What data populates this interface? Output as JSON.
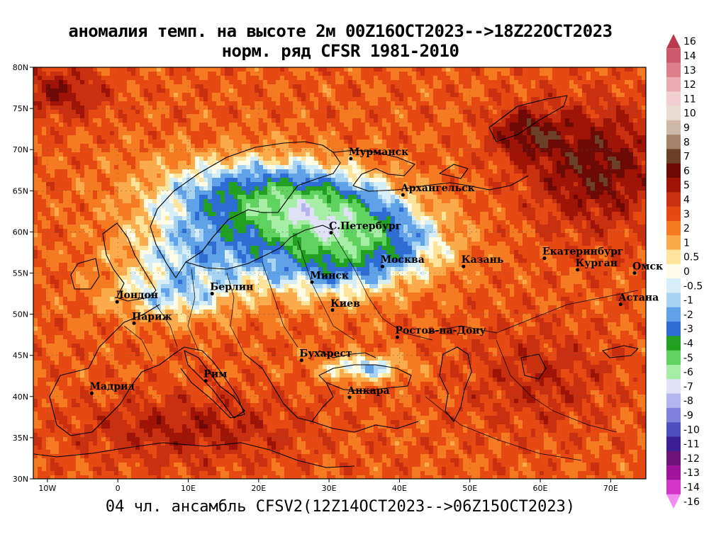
{
  "header": {
    "title_line1": "аномалия темп. на высоте 2м 00Z16OCT2023-->18Z22OCT2023",
    "title_line2": "норм. ряд CFSR 1981-2010"
  },
  "footer": {
    "text": "04 чл. ансамбль CFSV2(12Z14OCT2023-->06Z15OCT2023)"
  },
  "map": {
    "lon_range": [
      -12,
      75
    ],
    "lat_range": [
      30,
      80
    ],
    "x_ticks": [
      {
        "lon": -10,
        "label": "10W"
      },
      {
        "lon": 0,
        "label": "0"
      },
      {
        "lon": 10,
        "label": "10E"
      },
      {
        "lon": 20,
        "label": "20E"
      },
      {
        "lon": 30,
        "label": "30E"
      },
      {
        "lon": 40,
        "label": "40E"
      },
      {
        "lon": 50,
        "label": "50E"
      },
      {
        "lon": 60,
        "label": "60E"
      },
      {
        "lon": 70,
        "label": "70E"
      }
    ],
    "y_ticks": [
      {
        "lat": 80,
        "label": "80N"
      },
      {
        "lat": 75,
        "label": "75N"
      },
      {
        "lat": 70,
        "label": "70N"
      },
      {
        "lat": 65,
        "label": "65N"
      },
      {
        "lat": 60,
        "label": "60N"
      },
      {
        "lat": 55,
        "label": "55N"
      },
      {
        "lat": 50,
        "label": "50N"
      },
      {
        "lat": 45,
        "label": "45N"
      },
      {
        "lat": 40,
        "label": "40N"
      },
      {
        "lat": 35,
        "label": "35N"
      },
      {
        "lat": 30,
        "label": "30N"
      }
    ],
    "cities": [
      {
        "name": "Мурманск",
        "lon": 33.1,
        "lat": 68.9
      },
      {
        "name": "Архангельск",
        "lon": 40.5,
        "lat": 64.5
      },
      {
        "name": "С.Петербург",
        "lon": 30.3,
        "lat": 59.9
      },
      {
        "name": "Москва",
        "lon": 37.6,
        "lat": 55.8
      },
      {
        "name": "Казань",
        "lon": 49.1,
        "lat": 55.8
      },
      {
        "name": "Екатеринбург",
        "lon": 60.6,
        "lat": 56.8
      },
      {
        "name": "Курган",
        "lon": 65.3,
        "lat": 55.4
      },
      {
        "name": "Омск",
        "lon": 73.4,
        "lat": 55.0
      },
      {
        "name": "Астана",
        "lon": 71.4,
        "lat": 51.2
      },
      {
        "name": "Минск",
        "lon": 27.6,
        "lat": 53.9
      },
      {
        "name": "Киев",
        "lon": 30.5,
        "lat": 50.5
      },
      {
        "name": "Берлин",
        "lon": 13.4,
        "lat": 52.5
      },
      {
        "name": "Лондон",
        "lon": -0.1,
        "lat": 51.5
      },
      {
        "name": "Париж",
        "lon": 2.3,
        "lat": 48.9
      },
      {
        "name": "Ростов-на-Дону",
        "lon": 39.7,
        "lat": 47.2
      },
      {
        "name": "Бухарест",
        "lon": 26.1,
        "lat": 44.4
      },
      {
        "name": "Рим",
        "lon": 12.5,
        "lat": 41.9
      },
      {
        "name": "Мадрид",
        "lon": -3.7,
        "lat": 40.4
      },
      {
        "name": "Анкара",
        "lon": 32.9,
        "lat": 39.9
      }
    ],
    "anomaly_blobs": [
      {
        "lon": 18,
        "lat": 64,
        "slon": 14,
        "slat": 5,
        "amp": -5.5
      },
      {
        "lon": 12,
        "lat": 57,
        "slon": 12,
        "slat": 4,
        "amp": -3.5
      },
      {
        "lon": 8,
        "lat": 52,
        "slon": 9,
        "slat": 3,
        "amp": -3.2
      },
      {
        "lon": 28,
        "lat": 62,
        "slon": 10,
        "slat": 5,
        "amp": -4.5
      },
      {
        "lon": 35,
        "lat": 60,
        "slon": 10,
        "slat": 5,
        "amp": -3.5
      },
      {
        "lon": 30,
        "lat": 55,
        "slon": 10,
        "slat": 4,
        "amp": -3.0
      },
      {
        "lon": 40,
        "lat": 58,
        "slon": 9,
        "slat": 4,
        "amp": -2.0
      },
      {
        "lon": 35,
        "lat": 43.5,
        "slon": 6,
        "slat": 1.6,
        "amp": -4.0
      },
      {
        "lon": 68,
        "lat": 68,
        "slon": 9,
        "slat": 7,
        "amp": 3.5
      },
      {
        "lon": 58,
        "lat": 72,
        "slon": 5,
        "slat": 3,
        "amp": 3.0
      },
      {
        "lon": 10,
        "lat": 36,
        "slon": 15,
        "slat": 4,
        "amp": 2.0
      },
      {
        "lon": -8,
        "lat": 77,
        "slon": 6,
        "slat": 3,
        "amp": 2.5
      },
      {
        "lon": 60,
        "lat": 42,
        "slon": 10,
        "slat": 6,
        "amp": 1.5
      }
    ],
    "base_anomaly": 3.2,
    "colors": {
      "contour": "#8c8c8c",
      "coast": "#000000"
    }
  },
  "colorbar": {
    "bins": [
      {
        "label": "16",
        "color": "#b83a4b"
      },
      {
        "label": "14",
        "color": "#cd5a6b"
      },
      {
        "label": "13",
        "color": "#dd7f8b"
      },
      {
        "label": "12",
        "color": "#ecaab2"
      },
      {
        "label": "11",
        "color": "#f2cfd2"
      },
      {
        "label": "10",
        "color": "#e9dcd3"
      },
      {
        "label": "9",
        "color": "#cfb8a8"
      },
      {
        "label": "8",
        "color": "#a58269"
      },
      {
        "label": "7",
        "color": "#6b4026"
      },
      {
        "label": "6",
        "color": "#6e0a05"
      },
      {
        "label": "5",
        "color": "#a01408"
      },
      {
        "label": "4",
        "color": "#c8300f"
      },
      {
        "label": "3",
        "color": "#e64a12"
      },
      {
        "label": "2",
        "color": "#f67a22"
      },
      {
        "label": "1",
        "color": "#fbab4c"
      },
      {
        "label": "0.5",
        "color": "#fde49a"
      },
      {
        "label": "0",
        "color": "#fefce6"
      },
      {
        "label": "-0.5",
        "color": "#d6eef8"
      },
      {
        "label": "-1",
        "color": "#a8d2f2"
      },
      {
        "label": "-2",
        "color": "#5fa2e8"
      },
      {
        "label": "-3",
        "color": "#2e6ed4"
      },
      {
        "label": "-4",
        "color": "#22a022"
      },
      {
        "label": "-5",
        "color": "#5fd25f"
      },
      {
        "label": "-6",
        "color": "#a6eda6"
      },
      {
        "label": "-7",
        "color": "#e0e0f7"
      },
      {
        "label": "-8",
        "color": "#b4b4ee"
      },
      {
        "label": "-9",
        "color": "#8282dc"
      },
      {
        "label": "-10",
        "color": "#5050c0"
      },
      {
        "label": "-11",
        "color": "#3c1e96"
      },
      {
        "label": "-12",
        "color": "#6e1478"
      },
      {
        "label": "-13",
        "color": "#a0149b"
      },
      {
        "label": "-14",
        "color": "#d236c8"
      },
      {
        "label": "-16",
        "color": "#f08cf0"
      }
    ]
  }
}
